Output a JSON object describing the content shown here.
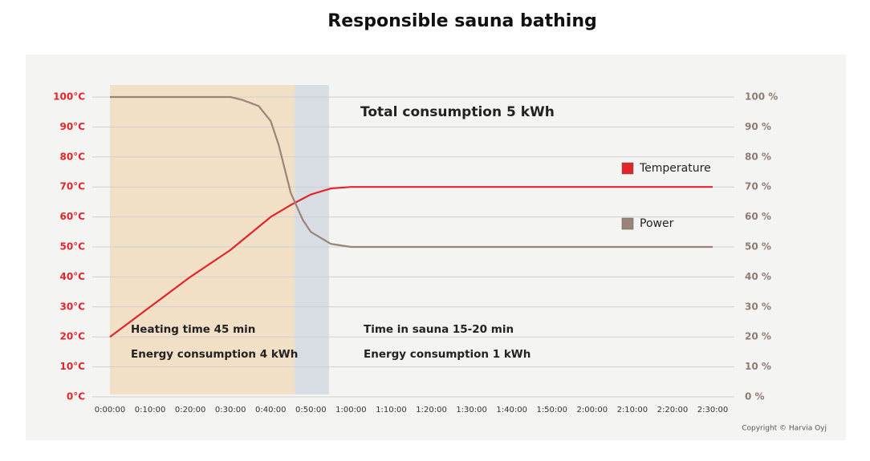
{
  "chart_data": {
    "type": "line",
    "title": "Responsible sauna bathing",
    "xlim": [
      0,
      150
    ],
    "xticks": [
      {
        "value": 0,
        "label": "0:00:00"
      },
      {
        "value": 10,
        "label": "0:10:00"
      },
      {
        "value": 20,
        "label": "0:20:00"
      },
      {
        "value": 30,
        "label": "0:30:00"
      },
      {
        "value": 40,
        "label": "0:40:00"
      },
      {
        "value": 50,
        "label": "0:50:00"
      },
      {
        "value": 60,
        "label": "1:00:00"
      },
      {
        "value": 70,
        "label": "1:10:00"
      },
      {
        "value": 80,
        "label": "1:20:00"
      },
      {
        "value": 90,
        "label": "1:30:00"
      },
      {
        "value": 100,
        "label": "1:40:00"
      },
      {
        "value": 110,
        "label": "1:50:00"
      },
      {
        "value": 120,
        "label": "2:00:00"
      },
      {
        "value": 130,
        "label": "2:10:00"
      },
      {
        "value": 140,
        "label": "2:20:00"
      },
      {
        "value": 150,
        "label": "2:30:00"
      }
    ],
    "ylim": [
      0,
      100
    ],
    "yticks": [
      {
        "value": 0,
        "label": "0°C"
      },
      {
        "value": 10,
        "label": "10°C"
      },
      {
        "value": 20,
        "label": "20°C"
      },
      {
        "value": 30,
        "label": "30°C"
      },
      {
        "value": 40,
        "label": "40°C"
      },
      {
        "value": 50,
        "label": "50°C"
      },
      {
        "value": 60,
        "label": "60°C"
      },
      {
        "value": 70,
        "label": "70°C"
      },
      {
        "value": 80,
        "label": "80°C"
      },
      {
        "value": 90,
        "label": "90°C"
      },
      {
        "value": 100,
        "label": "100°C"
      }
    ],
    "y2lim": [
      0,
      100
    ],
    "y2ticks": [
      {
        "value": 0,
        "label": "0 %"
      },
      {
        "value": 10,
        "label": "10 %"
      },
      {
        "value": 20,
        "label": "20 %"
      },
      {
        "value": 30,
        "label": "30 %"
      },
      {
        "value": 40,
        "label": "40 %"
      },
      {
        "value": 50,
        "label": "50 %"
      },
      {
        "value": 60,
        "label": "60 %"
      },
      {
        "value": 70,
        "label": "70 %"
      },
      {
        "value": 80,
        "label": "80 %"
      },
      {
        "value": 90,
        "label": "90 %"
      },
      {
        "value": 100,
        "label": "100 %"
      }
    ],
    "grid": true,
    "legend": "right",
    "ytick_color": "#e0262b",
    "y2tick_color": "#8c7c72",
    "shaded_regions": [
      {
        "start": 0,
        "end": 46,
        "color": "#f2e0c6"
      },
      {
        "start": 46,
        "end": 54.5,
        "color": "#d7dde2"
      }
    ],
    "series": [
      {
        "name": "Temperature",
        "color": "#e0262b",
        "x": [
          0,
          10,
          20,
          30,
          40,
          45,
          50,
          55,
          60,
          150
        ],
        "values": [
          20,
          30,
          40,
          49,
          60,
          64,
          67.5,
          69.5,
          70,
          70
        ]
      },
      {
        "name": "Power",
        "color": "#9a8478",
        "axis": "y2",
        "x": [
          0,
          30,
          33,
          37,
          40,
          42,
          45,
          48,
          50,
          55,
          60,
          150
        ],
        "values": [
          100,
          100,
          99,
          97,
          92,
          84,
          68,
          59,
          55,
          51,
          50,
          50
        ]
      }
    ],
    "annotations": {
      "total": "Total consumption 5 kWh",
      "heating_time": "Heating time 45 min",
      "heating_energy": "Energy consumption 4 kWh",
      "sauna_time": "Time in sauna 15-20 min",
      "sauna_energy": "Energy consumption 1 kWh"
    },
    "copyright": "Copyright © Harvia Oyj"
  }
}
